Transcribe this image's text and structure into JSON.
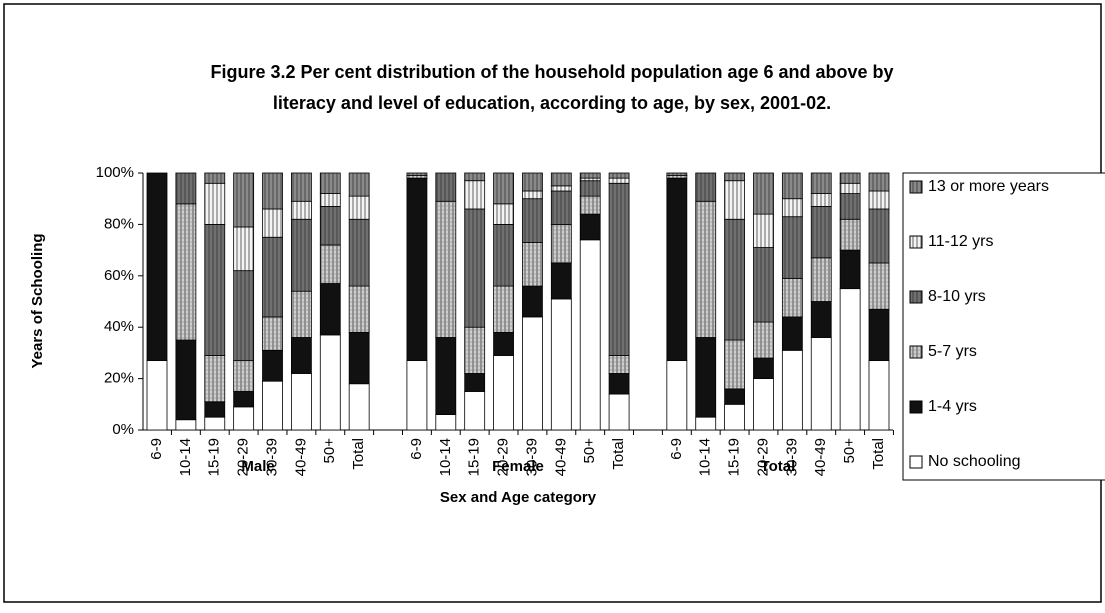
{
  "chart_data": {
    "type": "bar",
    "stacked": true,
    "title": [
      "Figure 3.2  Per cent distribution of the household population age 6 and above by",
      "literacy and level of education, according to age, by sex, 2001-02."
    ],
    "y_label": "Years of Schooling",
    "x_label": "Sex and Age category",
    "groups": [
      "Male",
      "Female",
      "Total"
    ],
    "categories": [
      "6-9",
      "10-14",
      "15-19",
      "20-29",
      "30-39",
      "40-49",
      "50+",
      "Total",
      null,
      "6-9",
      "10-14",
      "15-19",
      "20-29",
      "30-39",
      "40-49",
      "50+",
      "Total",
      null,
      "6-9",
      "10-14",
      "15-19",
      "20-29",
      "30-39",
      "40-49",
      "50+",
      "Total"
    ],
    "ylim": [
      0,
      100
    ],
    "yticks": [
      {
        "value": 0,
        "label": "0%"
      },
      {
        "value": 20,
        "label": "20%"
      },
      {
        "value": 40,
        "label": "40%"
      },
      {
        "value": 60,
        "label": "60%"
      },
      {
        "value": 80,
        "label": "80%"
      },
      {
        "value": 100,
        "label": "100%"
      }
    ],
    "legend": "right",
    "series": [
      {
        "name": "No  schooling",
        "color": "#ffffff",
        "values": [
          27,
          4,
          5,
          9,
          19,
          22,
          37,
          18,
          null,
          27,
          6,
          15,
          29,
          44,
          51,
          74,
          14,
          null,
          27,
          5,
          10,
          20,
          31,
          36,
          55,
          27
        ]
      },
      {
        "name": "1-4 yrs",
        "color": "#111111",
        "values": [
          73,
          31,
          6,
          6,
          12,
          14,
          20,
          20,
          null,
          71,
          30,
          7,
          9,
          12,
          14,
          10,
          8,
          null,
          71,
          31,
          6,
          8,
          13,
          14,
          15,
          20
        ]
      },
      {
        "name": "5-7 yrs",
        "color": "#d0d0d0",
        "values": [
          0,
          53,
          18,
          12,
          13,
          18,
          15,
          18,
          null,
          1,
          53,
          18,
          18,
          17,
          15,
          7,
          7,
          null,
          1,
          53,
          19,
          14,
          15,
          17,
          12,
          18
        ]
      },
      {
        "name": "8-10 yrs",
        "color": "#707070",
        "values": [
          0,
          12,
          51,
          35,
          31,
          28,
          15,
          26,
          null,
          0,
          11,
          46,
          24,
          17,
          13,
          6,
          67,
          null,
          0,
          11,
          47,
          29,
          24,
          20,
          10,
          21
        ]
      },
      {
        "name": "11-12 yrs",
        "color": "#f4f4f4",
        "values": [
          0,
          0,
          16,
          17,
          11,
          7,
          5,
          9,
          null,
          0,
          0,
          11,
          8,
          3,
          2,
          1,
          2,
          null,
          0,
          0,
          15,
          13,
          7,
          5,
          4,
          7
        ]
      },
      {
        "name": "13 or more years",
        "color": "#8a8a8a",
        "values": [
          0,
          0,
          4,
          21,
          14,
          11,
          8,
          9,
          null,
          1,
          0,
          3,
          12,
          7,
          5,
          2,
          2,
          null,
          1,
          0,
          3,
          16,
          10,
          8,
          4,
          7
        ]
      }
    ]
  }
}
